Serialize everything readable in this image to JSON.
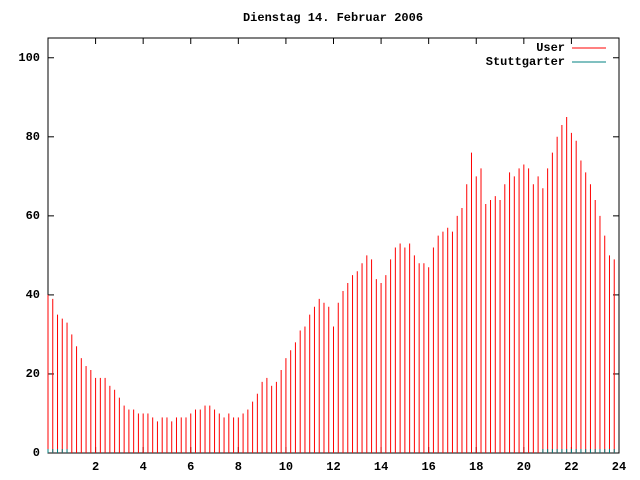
{
  "chart_data": {
    "type": "impulse",
    "title": "Dienstag 14. Februar 2006",
    "x": [
      0,
      0.2,
      0.4,
      0.6,
      0.8,
      1,
      1.2,
      1.4,
      1.6,
      1.8,
      2,
      2.2,
      2.4,
      2.6,
      2.8,
      3,
      3.2,
      3.4,
      3.6,
      3.8,
      4,
      4.2,
      4.4,
      4.6,
      4.8,
      5,
      5.2,
      5.4,
      5.6,
      5.8,
      6,
      6.2,
      6.4,
      6.6,
      6.8,
      7,
      7.2,
      7.4,
      7.6,
      7.8,
      8,
      8.2,
      8.4,
      8.6,
      8.8,
      9,
      9.2,
      9.4,
      9.6,
      9.8,
      10,
      10.2,
      10.4,
      10.6,
      10.8,
      11,
      11.2,
      11.4,
      11.6,
      11.8,
      12,
      12.2,
      12.4,
      12.6,
      12.8,
      13,
      13.2,
      13.4,
      13.6,
      13.8,
      14,
      14.2,
      14.4,
      14.6,
      14.8,
      15,
      15.2,
      15.4,
      15.6,
      15.8,
      16,
      16.2,
      16.4,
      16.6,
      16.8,
      17,
      17.2,
      17.4,
      17.6,
      17.8,
      18,
      18.2,
      18.4,
      18.6,
      18.8,
      19,
      19.2,
      19.4,
      19.6,
      19.8,
      20,
      20.2,
      20.4,
      20.6,
      20.8,
      21,
      21.2,
      21.4,
      21.6,
      21.8,
      22,
      22.2,
      22.4,
      22.6,
      22.8,
      23,
      23.2,
      23.4,
      23.6,
      23.8
    ],
    "series": [
      {
        "name": "User",
        "color": "#ff0000",
        "values": [
          40,
          39,
          35,
          34,
          33,
          30,
          27,
          24,
          22,
          21,
          19,
          19,
          19,
          17,
          16,
          14,
          12,
          11,
          11,
          10,
          10,
          10,
          9,
          8,
          9,
          9,
          8,
          9,
          9,
          9,
          10,
          11,
          11,
          12,
          12,
          11,
          10,
          9,
          10,
          9,
          9,
          10,
          11,
          13,
          15,
          18,
          19,
          17,
          18,
          21,
          24,
          26,
          28,
          31,
          32,
          35,
          37,
          39,
          38,
          37,
          32,
          38,
          41,
          43,
          45,
          46,
          48,
          50,
          49,
          44,
          43,
          45,
          49,
          52,
          53,
          52,
          53,
          50,
          48,
          48,
          47,
          52,
          55,
          56,
          57,
          56,
          60,
          62,
          68,
          76,
          70,
          72,
          63,
          64,
          65,
          64,
          68,
          71,
          70,
          72,
          73,
          72,
          68,
          70,
          67,
          72,
          76,
          80,
          83,
          85,
          81,
          79,
          74,
          71,
          68,
          64,
          60,
          55,
          50,
          49
        ]
      },
      {
        "name": "Stuttgarter",
        "color": "#008080",
        "values": [
          1,
          1,
          1,
          1,
          1,
          null,
          null,
          null,
          null,
          null,
          null,
          null,
          null,
          null,
          null,
          null,
          null,
          null,
          null,
          null,
          null,
          null,
          null,
          null,
          null,
          null,
          null,
          null,
          null,
          null,
          null,
          null,
          null,
          null,
          null,
          null,
          null,
          null,
          null,
          null,
          null,
          null,
          null,
          null,
          null,
          null,
          null,
          null,
          null,
          null,
          null,
          null,
          null,
          null,
          null,
          null,
          null,
          null,
          null,
          null,
          null,
          null,
          null,
          null,
          null,
          null,
          null,
          null,
          null,
          null,
          null,
          null,
          null,
          null,
          null,
          null,
          null,
          null,
          null,
          null,
          null,
          null,
          null,
          null,
          null,
          null,
          null,
          null,
          null,
          null,
          null,
          null,
          null,
          null,
          null,
          null,
          null,
          null,
          null,
          null,
          null,
          null,
          null,
          null,
          1,
          1,
          1,
          1,
          1,
          1,
          1,
          1,
          1,
          1,
          1,
          1,
          1,
          1,
          1,
          1
        ]
      }
    ],
    "xlim": [
      0,
      24
    ],
    "xticks": [
      2,
      4,
      6,
      8,
      10,
      12,
      14,
      16,
      18,
      20,
      22,
      24
    ],
    "ylim": [
      0,
      105
    ],
    "yticks": [
      0,
      20,
      40,
      60,
      80,
      100
    ]
  }
}
